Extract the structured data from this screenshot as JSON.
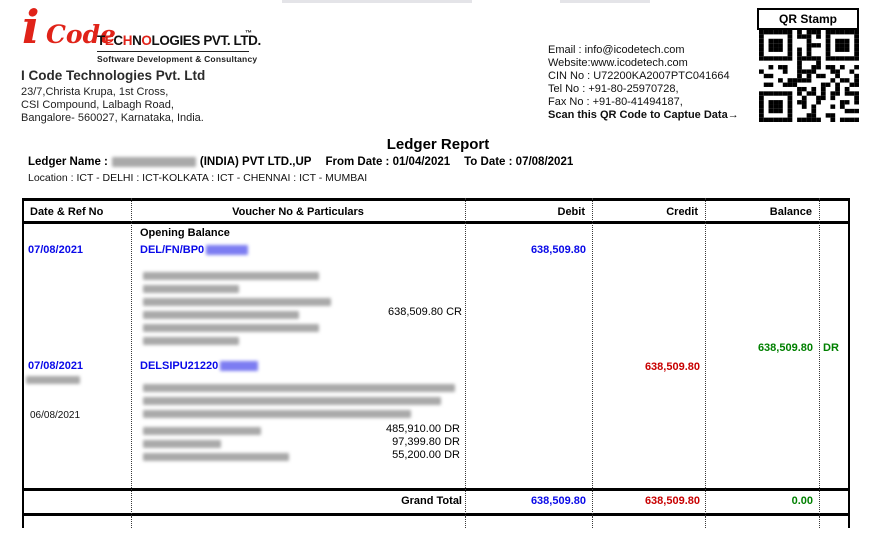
{
  "colors": {
    "accent_red": "#e02319",
    "debit_blue": "#0909e8",
    "credit_red": "#c80000",
    "balance_green": "#008000"
  },
  "header": {
    "logo_i": "i",
    "logo_code": "Code",
    "logo_tech_segments": [
      {
        "t": "T",
        "red": false
      },
      {
        "t": "E",
        "red": true
      },
      {
        "t": "C",
        "red": false
      },
      {
        "t": "H",
        "red": true
      },
      {
        "t": "N",
        "red": false
      },
      {
        "t": "O",
        "red": true
      },
      {
        "t": "LOGIES PVT. LTD.",
        "red": false
      }
    ],
    "logo_tm": "™",
    "logo_tagline": "Software Development & Consultancy",
    "company_name": "I Code Technologies Pvt. Ltd",
    "address_lines": [
      "23/7,Christa Krupa, 1st Cross,",
      "CSI Compound, Lalbagh Road,",
      "Bangalore- 560027, Karnataka, India."
    ],
    "contact": {
      "email": "Email : info@icodetech.com",
      "website": "Website:www.icodetech.com",
      "cin": "CIN No : U72200KA2007PTC041664",
      "tel": "Tel No : +91-80-25970728,",
      "fax": "Fax No : +91-80-41494187,",
      "scan": "Scan this QR Code to Captue Data",
      "scan_arrow": "→"
    },
    "qr_label": "QR Stamp"
  },
  "report": {
    "title": "Ledger Report",
    "ledger_name_label": "Ledger Name :",
    "ledger_name_visible": "(INDIA) PVT LTD.,UP",
    "from_label": "From Date : 01/04/2021",
    "to_label": "To Date : 07/08/2021",
    "location_line": "Location : ICT - DELHI :  ICT-KOLKATA :  ICT - CHENNAI :  ICT - MUMBAI"
  },
  "table": {
    "headers": [
      "Date & Ref No",
      "Voucher No & Particulars",
      "Debit",
      "Credit",
      "Balance"
    ],
    "opening_balance": "Opening Balance",
    "entry1": {
      "date": "07/08/2021",
      "voucher_prefix": "DEL/FN/BP0",
      "debit": "638,509.80",
      "running_cr": "638,509.80 CR",
      "balance": "638,509.80",
      "balance_side": "DR"
    },
    "entry2": {
      "date": "07/08/2021",
      "voucher_prefix": "DELSIPU21220",
      "credit": "638,509.80",
      "sub_date": "06/08/2021",
      "item_amounts": [
        "485,910.00 DR",
        "97,399.80 DR",
        "55,200.00 DR"
      ]
    },
    "grand_total_label": "Grand Total",
    "grand_total": {
      "debit": "638,509.80",
      "credit": "638,509.80",
      "balance": "0.00"
    }
  }
}
